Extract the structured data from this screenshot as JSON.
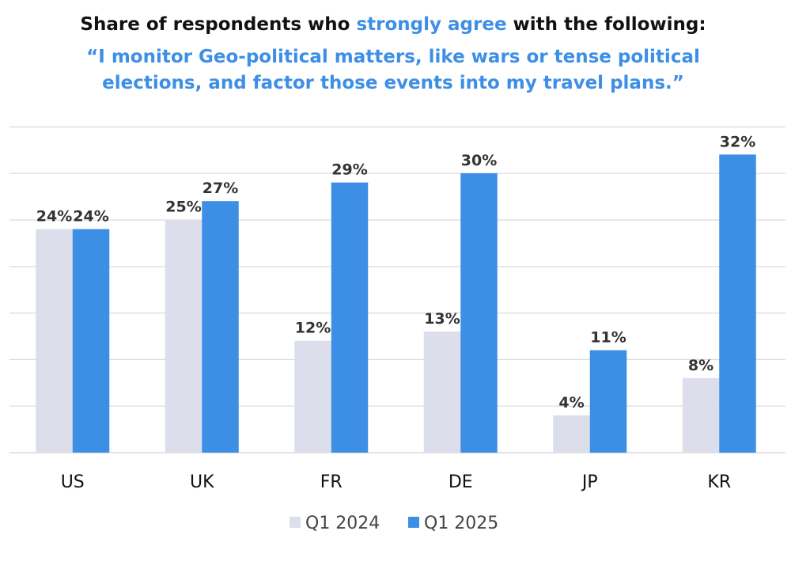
{
  "title": {
    "line1_prefix": "Share of respondents who ",
    "line1_highlight": "strongly agree",
    "line1_suffix": " with the following:",
    "line2": "“I monitor Geo-political matters, like wars or tense political",
    "line3": "elections, and factor those events into my travel plans.”"
  },
  "colors": {
    "title_text": "#111111",
    "highlight": "#3d8fe6",
    "series_2024": "#dcdfeb",
    "series_2025": "#3d8fe6",
    "gridline": "#d9d9d9",
    "value_label": "#333333"
  },
  "chart_data": {
    "type": "bar",
    "categories": [
      "US",
      "UK",
      "FR",
      "DE",
      "JP",
      "KR"
    ],
    "series": [
      {
        "name": "Q1 2024",
        "values": [
          24,
          25,
          12,
          13,
          4,
          8
        ],
        "labels": [
          "24%",
          "25%",
          "12%",
          "13%",
          "4%",
          "8%"
        ]
      },
      {
        "name": "Q1 2025",
        "values": [
          24,
          27,
          29,
          30,
          11,
          32
        ],
        "labels": [
          "24%",
          "27%",
          "29%",
          "30%",
          "11%",
          "32%"
        ]
      }
    ],
    "ylim": [
      0,
      35
    ],
    "grid": true,
    "legend_position": "bottom",
    "xlabel": "",
    "ylabel": ""
  }
}
